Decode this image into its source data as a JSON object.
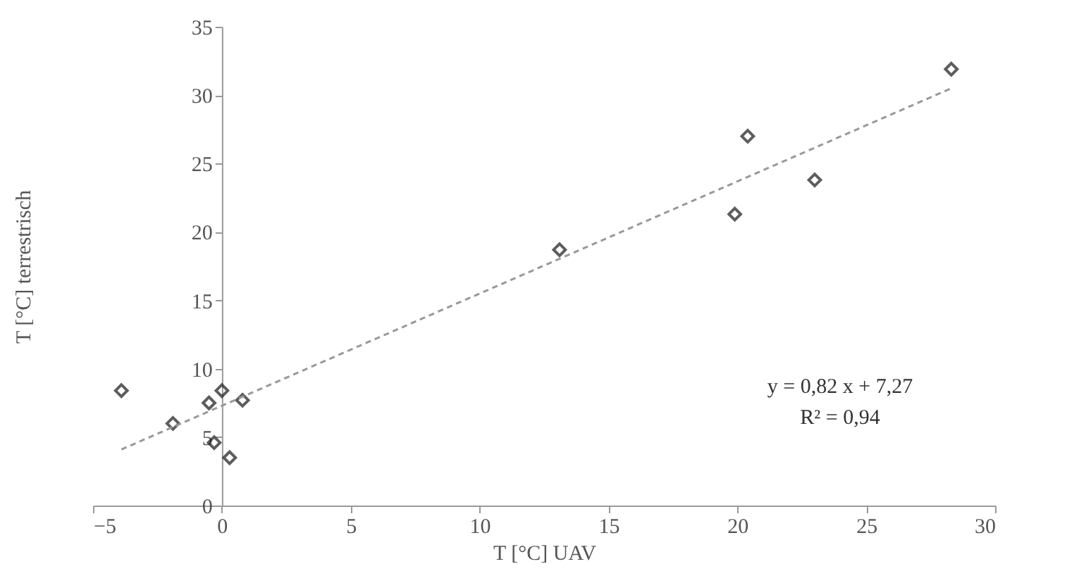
{
  "chart_data": {
    "type": "scatter",
    "xlabel": "T [°C] UAV",
    "ylabel": "T [°C] terrestrisch",
    "xlim": [
      -5,
      30
    ],
    "ylim": [
      0,
      35
    ],
    "xticks": [
      -5,
      0,
      5,
      10,
      15,
      20,
      25,
      30
    ],
    "yticks": [
      0,
      5,
      10,
      15,
      20,
      25,
      30,
      35
    ],
    "grid": false,
    "marker": "diamond",
    "series": [
      {
        "color": "#1a1a1a",
        "x": [
          -3.9,
          -1.9,
          -0.5,
          0.0,
          0.8,
          -0.3,
          0.3,
          13.1,
          19.9,
          20.4,
          23.0,
          28.3
        ],
        "values": [
          8.4,
          6.0,
          7.5,
          8.4,
          7.7,
          4.6,
          3.5,
          18.7,
          21.3,
          27.0,
          23.8,
          31.9
        ]
      },
      {
        "type": "line",
        "color": "#999999",
        "line_style": "dashed",
        "marker": "none",
        "x": [
          -3.9,
          28.3
        ],
        "values": [
          4.1,
          30.5
        ]
      }
    ],
    "annotations": [
      "y = 0,82 x + 7,27",
      "R² = 0,94"
    ]
  }
}
